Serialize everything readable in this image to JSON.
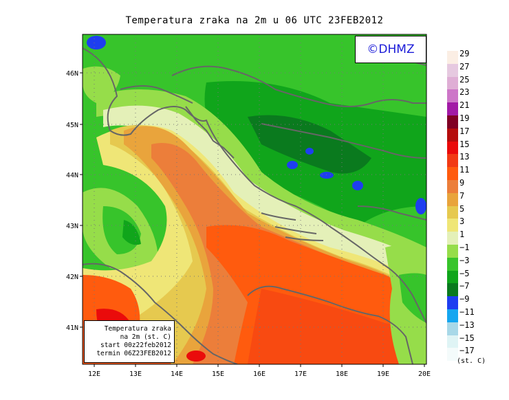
{
  "title": "Temperatura zraka na 2m u 06 UTC 23FEB2012",
  "logo_text": "©DHMZ",
  "info_box": {
    "line1": "Temperatura zraka",
    "line2": "na 2m (st. C)",
    "line3": "start 00z22feb2012",
    "line4": "termin 06Z23FEB2012"
  },
  "legend": {
    "units": "(st. C)",
    "levels": [
      {
        "label": "29",
        "color": "#fbeee4"
      },
      {
        "label": "27",
        "color": "#e6c9e0"
      },
      {
        "label": "25",
        "color": "#dfaed5"
      },
      {
        "label": "23",
        "color": "#cd76c8"
      },
      {
        "label": "21",
        "color": "#a21aa6"
      },
      {
        "label": "19",
        "color": "#800024"
      },
      {
        "label": "17",
        "color": "#b50d0d"
      },
      {
        "label": "15",
        "color": "#ea0b0b"
      },
      {
        "label": "13",
        "color": "#f23a14"
      },
      {
        "label": "11",
        "color": "#ff5b0e"
      },
      {
        "label": "9",
        "color": "#ec7e3a"
      },
      {
        "label": "7",
        "color": "#e9a43c"
      },
      {
        "label": "5",
        "color": "#e6c94f"
      },
      {
        "label": "3",
        "color": "#efe677"
      },
      {
        "label": "1",
        "color": "#e4f0b8"
      },
      {
        "label": "−1",
        "color": "#96dd4a"
      },
      {
        "label": "−3",
        "color": "#37c42b"
      },
      {
        "label": "−5",
        "color": "#10a51b"
      },
      {
        "label": "−7",
        "color": "#0a7a1e"
      },
      {
        "label": "−9",
        "color": "#1e3ef0"
      },
      {
        "label": "−11",
        "color": "#15a6f0"
      },
      {
        "label": "−13",
        "color": "#a8d8e8"
      },
      {
        "label": "−15",
        "color": "#dff4f5"
      },
      {
        "label": "−17",
        "color": "#f4fbfb"
      }
    ]
  },
  "map": {
    "lon_ticks": [
      "12E",
      "13E",
      "14E",
      "15E",
      "16E",
      "17E",
      "18E",
      "19E",
      "20E"
    ],
    "lat_ticks": [
      "46N",
      "45N",
      "44N",
      "43N",
      "42N",
      "41N"
    ]
  }
}
